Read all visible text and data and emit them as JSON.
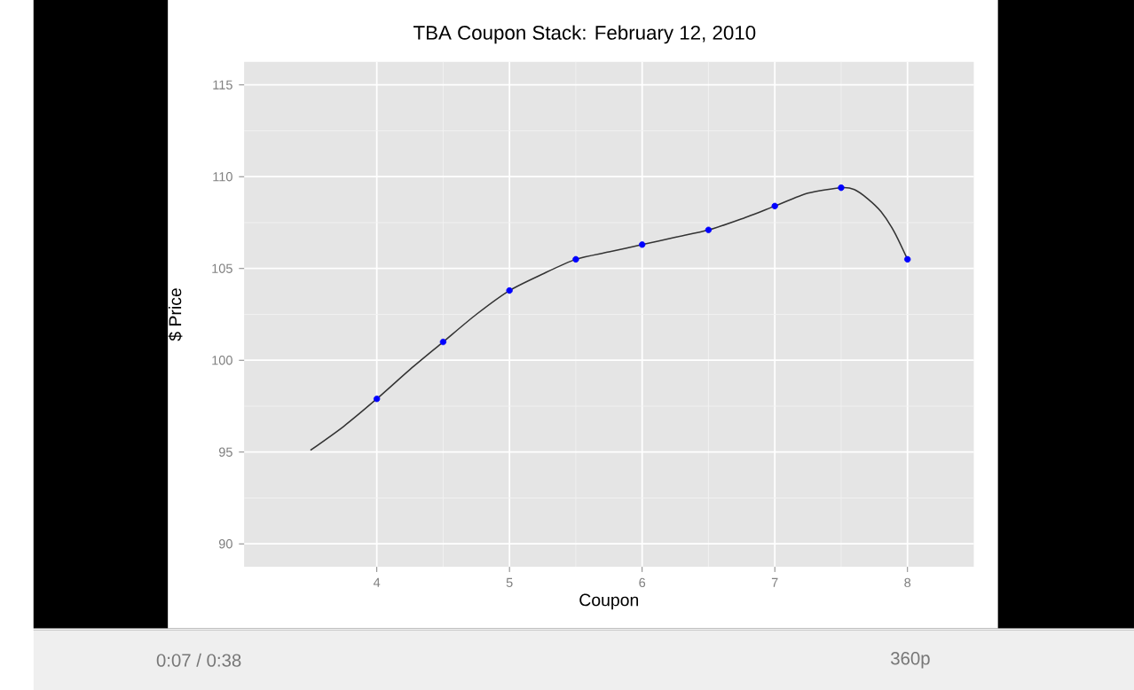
{
  "chart_data": {
    "type": "line",
    "title": "TBA Coupon Stack: February 12, 2010",
    "xlabel": "Coupon",
    "ylabel": "$ Price",
    "series": [
      {
        "color": "#333333",
        "marker": "none",
        "x": [
          3.5,
          3.75,
          4,
          4.25,
          4.5,
          4.75,
          5,
          5.25,
          5.5,
          5.75,
          6,
          6.25,
          6.5,
          6.75,
          7,
          7.25,
          7.5,
          7.6,
          7.7,
          7.8,
          7.9,
          8
        ],
        "values": [
          95.1,
          96.4,
          97.9,
          99.5,
          101.0,
          102.5,
          103.8,
          104.7,
          105.5,
          105.9,
          106.3,
          106.7,
          107.1,
          107.7,
          108.4,
          109.1,
          109.4,
          109.3,
          108.8,
          108.1,
          107.0,
          105.5
        ]
      },
      {
        "type": "scatter",
        "color": "#0000ff",
        "marker": "circle",
        "x": [
          4,
          4.5,
          5,
          5.5,
          6,
          6.5,
          7,
          7.5,
          8
        ],
        "values": [
          97.9,
          101.0,
          103.8,
          105.5,
          106.3,
          107.1,
          108.4,
          109.4,
          105.5
        ]
      }
    ],
    "xlim": [
      3,
      8.5
    ],
    "ylim": [
      88.75,
      116.25
    ],
    "xticks": [
      4,
      5,
      6,
      7,
      8
    ],
    "yticks": [
      90,
      95,
      100,
      105,
      110,
      115
    ],
    "grid": true,
    "annotations": [
      "0:07 / 0:38",
      "360p"
    ]
  }
}
